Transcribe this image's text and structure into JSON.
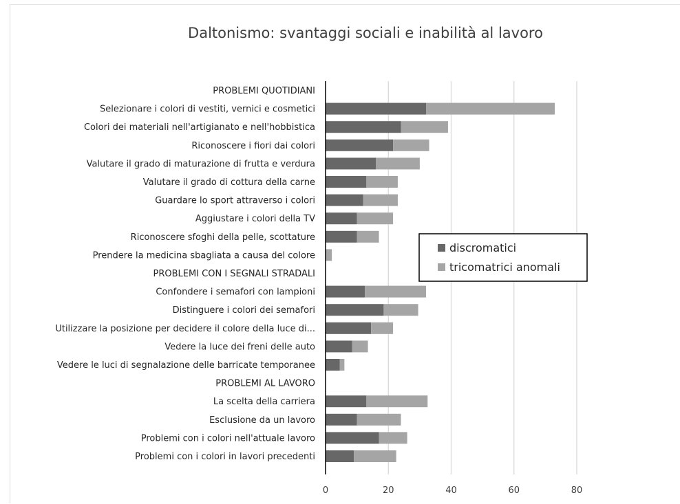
{
  "chart_data": {
    "type": "bar",
    "orientation": "horizontal",
    "stacked": true,
    "title": "Daltonismo: svantaggi sociali e inabilità al lavoro",
    "xlabel": "",
    "ylabel": "",
    "xlim": [
      0,
      80
    ],
    "xticks": [
      "0",
      "20",
      "40",
      "60",
      "80"
    ],
    "grid": "vertical",
    "legend_position": "right",
    "categories": [
      "PROBLEMI QUOTIDIANI",
      "Selezionare i colori di vestiti, vernici e cosmetici",
      "Colori dei materiali nell'artigianato e nell'hobbistica",
      "Riconoscere i fiori dai colori",
      "Valutare il grado di maturazione di frutta e verdura",
      "Valutare il grado di cottura della carne",
      "Guardare lo sport attraverso i colori",
      "Aggiustare i colori della TV",
      "Riconoscere sfoghi della pelle, scottature",
      "Prendere la medicina sbagliata a causa del colore",
      "PROBLEMI CON I SEGNALI STRADALI",
      "Confondere i semafori con lampioni",
      "Distinguere i colori dei semafori",
      "Utilizzare la posizione per decidere il colore della luce di...",
      "Vedere la luce dei freni delle auto",
      "Vedere le luci di segnalazione delle barricate temporanee",
      "PROBLEMI AL LAVORO",
      "La scelta della carriera",
      "Esclusione da un lavoro",
      "Problemi con i colori nell'attuale lavoro",
      "Problemi con i colori in lavori precedenti"
    ],
    "series": [
      {
        "name": "discromatici",
        "color": "#676767",
        "values": [
          0,
          32,
          24,
          21.5,
          16,
          13,
          12,
          10,
          10,
          0,
          0,
          12.5,
          18.5,
          14.5,
          8.5,
          4.5,
          0,
          13,
          10,
          17,
          9
        ]
      },
      {
        "name": "tricomatrici anomali",
        "color": "#a5a5a5",
        "values": [
          0,
          41,
          15,
          11.5,
          14,
          10,
          11,
          11.5,
          7,
          2,
          0,
          19.5,
          11,
          7,
          5,
          1.5,
          0,
          19.5,
          14,
          9,
          13.5
        ]
      }
    ]
  }
}
